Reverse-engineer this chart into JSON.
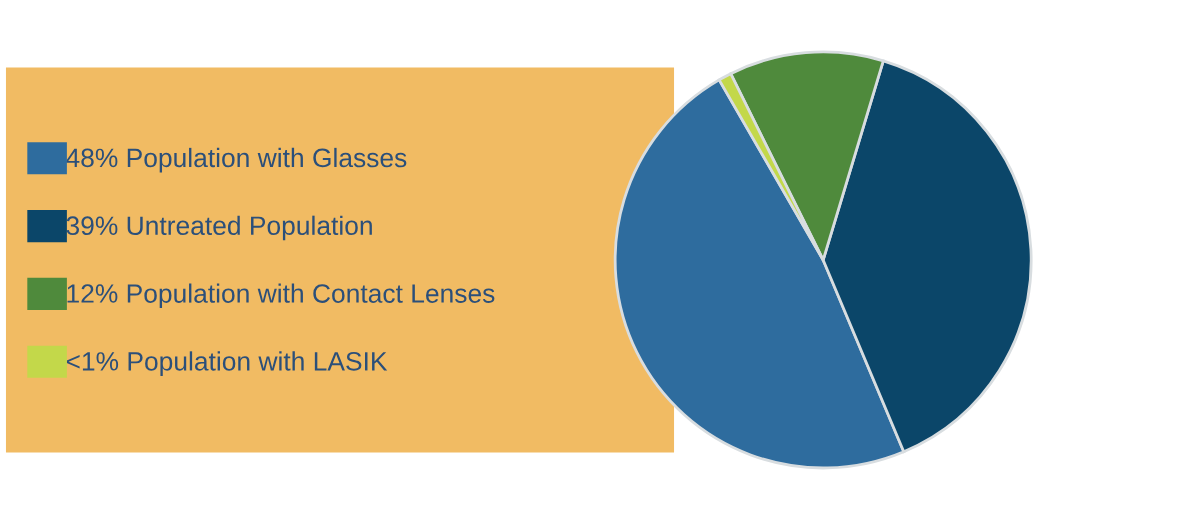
{
  "chart_data": {
    "type": "pie",
    "categories": [
      "48% Population with Glasses",
      "39% Untreated Population",
      "12% Population with Contact Lenses",
      "<1% Population with LASIK"
    ],
    "values": [
      48,
      39,
      12,
      1
    ],
    "colors": [
      "#2e6c9e",
      "#0b4669",
      "#4f8a3c",
      "#c3d84a"
    ],
    "legend": "left"
  }
}
